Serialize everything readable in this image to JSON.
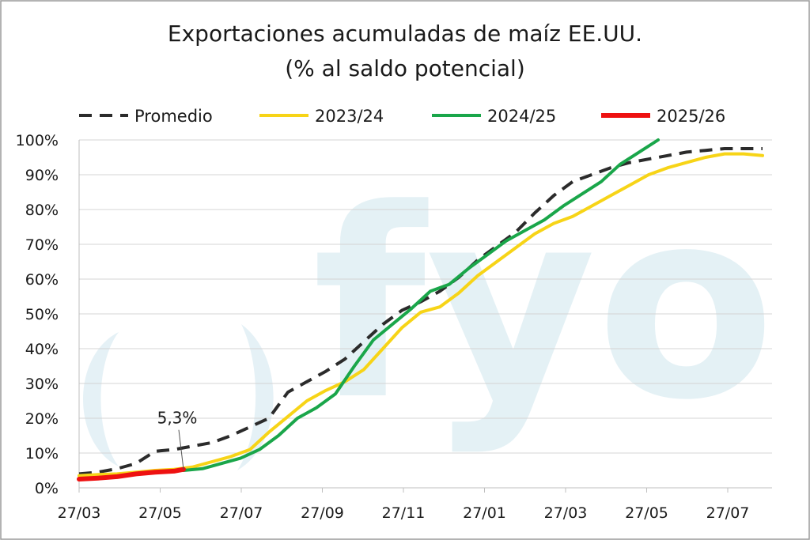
{
  "chart_data": {
    "type": "line",
    "title": "Exportaciones acumuladas de maíz EE.UU.",
    "subtitle": "(% al saldo potencial)",
    "xlabel": "",
    "ylabel": "",
    "x_ticks": [
      "27/03",
      "27/05",
      "27/07",
      "27/09",
      "27/11",
      "27/01",
      "27/03",
      "27/05",
      "27/07"
    ],
    "y_ticks": [
      "0%",
      "10%",
      "20%",
      "30%",
      "40%",
      "50%",
      "60%",
      "70%",
      "80%",
      "90%",
      "100%"
    ],
    "ylim": [
      0,
      100
    ],
    "x_unit": "weeks from 27/03",
    "xlim": [
      0,
      73
    ],
    "grid": "horizontal",
    "legend_position": "top",
    "watermark": "fyo",
    "annotation": {
      "text": "5,3%",
      "x": 11,
      "y": 5.3
    },
    "series": [
      {
        "name": "Promedio",
        "color": "#2b2b2b",
        "style": "dashed",
        "x": [
          0,
          2,
          4,
          6,
          8,
          10,
          12,
          14,
          16,
          18,
          20,
          22,
          24,
          26,
          28,
          30,
          32,
          34,
          36,
          38,
          40,
          42,
          44,
          46,
          48,
          50,
          52,
          54,
          56,
          58,
          60,
          62,
          64,
          66,
          68,
          70,
          72
        ],
        "y": [
          4,
          4.5,
          5.5,
          7,
          10.5,
          11,
          12,
          13,
          15,
          17.5,
          20,
          27.5,
          30.5,
          33.5,
          37,
          42,
          47,
          51,
          53.5,
          56.5,
          60.5,
          65.5,
          69.5,
          73.5,
          79,
          84,
          88,
          90,
          92,
          93.5,
          94.5,
          95.5,
          96.5,
          97,
          97.5,
          97.5,
          97.5
        ]
      },
      {
        "name": "2023/24",
        "color": "#f7d417",
        "style": "solid",
        "x": [
          0,
          2,
          4,
          6,
          8,
          10,
          12,
          14,
          16,
          18,
          20,
          22,
          24,
          26,
          28,
          30,
          32,
          34,
          36,
          38,
          40,
          42,
          44,
          46,
          48,
          50,
          52,
          54,
          56,
          58,
          60,
          62,
          64,
          66,
          68,
          70,
          72
        ],
        "y": [
          3.5,
          3.8,
          4,
          4.5,
          5,
          5.3,
          6,
          7.5,
          9,
          11,
          16,
          20.5,
          25,
          28,
          30.5,
          34,
          40,
          46,
          50.5,
          52,
          56,
          61,
          65,
          69,
          73,
          76,
          78,
          81,
          84,
          87,
          90,
          92,
          93.5,
          95,
          96,
          96,
          95.5
        ]
      },
      {
        "name": "2024/25",
        "color": "#1aa64a",
        "style": "solid",
        "x": [
          11,
          13,
          15,
          17,
          19,
          21,
          23,
          25,
          27,
          29,
          31,
          33,
          35,
          37,
          39,
          41,
          43,
          45,
          47,
          49,
          51,
          53,
          55,
          57,
          59,
          61
        ],
        "y": [
          5,
          5.5,
          7,
          8.5,
          11,
          15,
          20,
          23,
          27,
          35,
          42.5,
          47,
          51.5,
          56.5,
          58.5,
          63,
          67,
          71,
          74,
          77,
          81,
          84.5,
          88,
          93,
          96.5,
          100
        ]
      },
      {
        "name": "2025/26",
        "color": "#ee1111",
        "style": "solid",
        "x": [
          0,
          2,
          4,
          6,
          8,
          10,
          11
        ],
        "y": [
          2.5,
          2.8,
          3.2,
          4,
          4.5,
          4.8,
          5.3
        ]
      }
    ]
  }
}
